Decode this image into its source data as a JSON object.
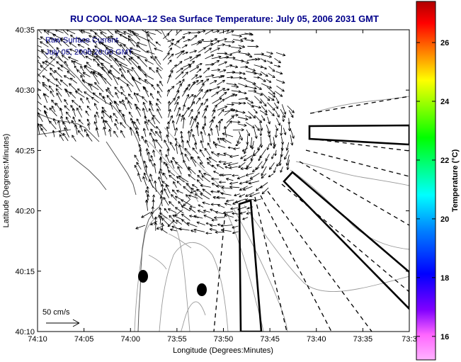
{
  "title": "RU COOL  NOAA–12  Sea Surface Temperature:  July 05, 2006 2031 GMT",
  "annotation": {
    "line1": "Raw Surface Current",
    "line2": "July 05, 2006 20:00 GMT"
  },
  "scale_label": "50 cm/s",
  "map": {
    "xlabel": "Longitude (Degrees:Minutes)",
    "ylabel": "Latitude (Degrees:Minutes)",
    "x_ticks": [
      "74:10",
      "74:05",
      "74:00",
      "73:55",
      "73:50",
      "73:45",
      "73:40",
      "73:35",
      "73:3"
    ],
    "y_ticks": [
      "40:35",
      "40:30",
      "40:25",
      "40:20",
      "40:15",
      "40:10"
    ]
  },
  "colorbar": {
    "label": "Temperature (°C)",
    "ticks": [
      "26",
      "24",
      "22",
      "20",
      "18",
      "16"
    ],
    "range": [
      15.2,
      27.4
    ]
  },
  "colors": {
    "title": "#00008b",
    "annotation": "#00008b",
    "bathymetry": "#9a9a9a",
    "vectors": "#000000"
  }
}
